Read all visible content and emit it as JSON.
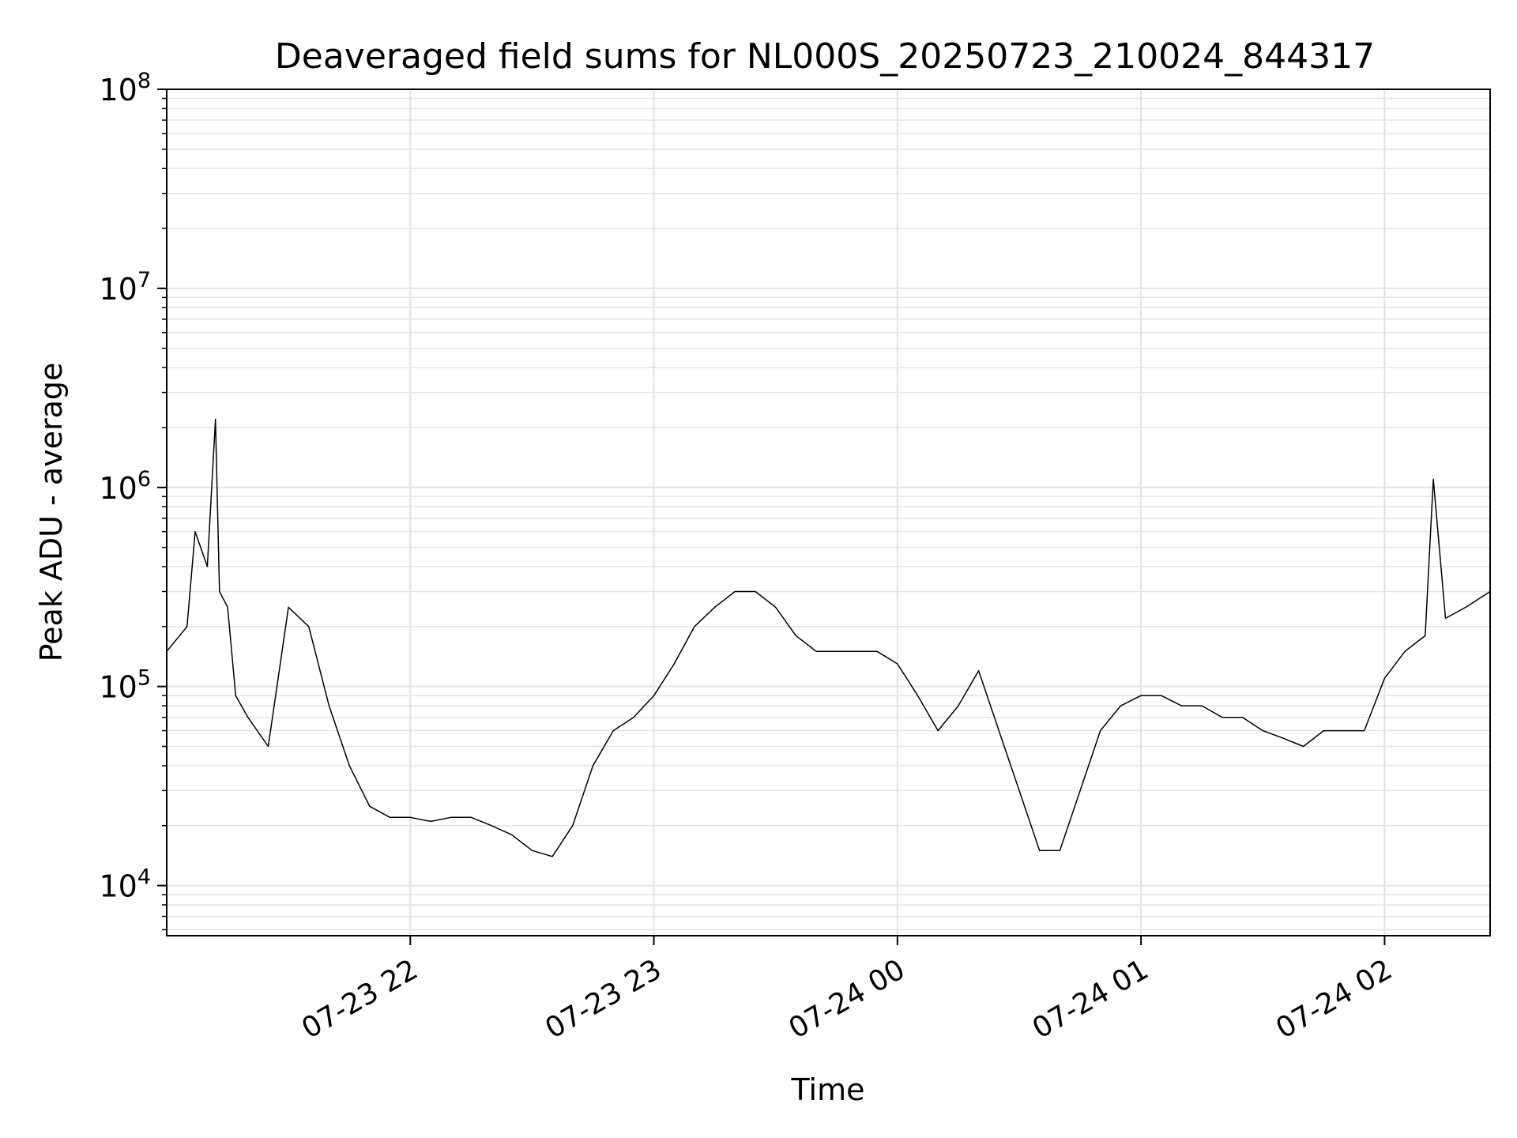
{
  "figure": {
    "title": "Deaveraged field sums for NL000S_20250723_210024_844317",
    "xlabel": "Time",
    "ylabel": "Peak ADU - average"
  },
  "chart_data": {
    "type": "line",
    "title": "Deaveraged field sums for NL000S_20250723_210024_844317",
    "xlabel": "Time",
    "ylabel": "Peak ADU - average",
    "x_range": [
      "2025-07-23 21:00",
      "2025-07-24 02:26"
    ],
    "ylim": [
      5600,
      100000000
    ],
    "yscale": "log",
    "grid": true,
    "legend": "none",
    "x_ticks": [
      {
        "time": "2025-07-23 22:00",
        "label": "07-23 22"
      },
      {
        "time": "2025-07-23 23:00",
        "label": "07-23 23"
      },
      {
        "time": "2025-07-24 00:00",
        "label": "07-24 00"
      },
      {
        "time": "2025-07-24 01:00",
        "label": "07-24 01"
      },
      {
        "time": "2025-07-24 02:00",
        "label": "07-24 02"
      }
    ],
    "y_ticks": [
      {
        "value": 10000,
        "base": "10",
        "exp": "4"
      },
      {
        "value": 100000,
        "base": "10",
        "exp": "5"
      },
      {
        "value": 1000000,
        "base": "10",
        "exp": "6"
      },
      {
        "value": 10000000,
        "base": "10",
        "exp": "7"
      },
      {
        "value": 100000000,
        "base": "10",
        "exp": "8"
      }
    ],
    "series": [
      {
        "color": "#000000",
        "x": [
          "2025-07-23 21:00",
          "2025-07-23 21:05",
          "2025-07-23 21:07",
          "2025-07-23 21:10",
          "2025-07-23 21:12",
          "2025-07-23 21:13",
          "2025-07-23 21:15",
          "2025-07-23 21:17",
          "2025-07-23 21:20",
          "2025-07-23 21:25",
          "2025-07-23 21:30",
          "2025-07-23 21:35",
          "2025-07-23 21:40",
          "2025-07-23 21:45",
          "2025-07-23 21:50",
          "2025-07-23 21:55",
          "2025-07-23 22:00",
          "2025-07-23 22:05",
          "2025-07-23 22:10",
          "2025-07-23 22:15",
          "2025-07-23 22:20",
          "2025-07-23 22:25",
          "2025-07-23 22:30",
          "2025-07-23 22:35",
          "2025-07-23 22:40",
          "2025-07-23 22:45",
          "2025-07-23 22:50",
          "2025-07-23 22:55",
          "2025-07-23 23:00",
          "2025-07-23 23:05",
          "2025-07-23 23:10",
          "2025-07-23 23:15",
          "2025-07-23 23:20",
          "2025-07-23 23:25",
          "2025-07-23 23:30",
          "2025-07-23 23:35",
          "2025-07-23 23:40",
          "2025-07-23 23:45",
          "2025-07-23 23:50",
          "2025-07-23 23:55",
          "2025-07-24 00:00",
          "2025-07-24 00:05",
          "2025-07-24 00:10",
          "2025-07-24 00:15",
          "2025-07-24 00:20",
          "2025-07-24 00:25",
          "2025-07-24 00:30",
          "2025-07-24 00:35",
          "2025-07-24 00:40",
          "2025-07-24 00:45",
          "2025-07-24 00:50",
          "2025-07-24 00:55",
          "2025-07-24 01:00",
          "2025-07-24 01:05",
          "2025-07-24 01:10",
          "2025-07-24 01:15",
          "2025-07-24 01:20",
          "2025-07-24 01:25",
          "2025-07-24 01:30",
          "2025-07-24 01:35",
          "2025-07-24 01:40",
          "2025-07-24 01:45",
          "2025-07-24 01:50",
          "2025-07-24 01:55",
          "2025-07-24 02:00",
          "2025-07-24 02:05",
          "2025-07-24 02:10",
          "2025-07-24 02:12",
          "2025-07-24 02:15",
          "2025-07-24 02:20",
          "2025-07-24 02:26"
        ],
        "y": [
          150000,
          200000,
          600000,
          400000,
          2200000,
          300000,
          250000,
          90000,
          70000,
          50000,
          250000,
          200000,
          80000,
          40000,
          25000,
          22000,
          22000,
          21000,
          22000,
          22000,
          20000,
          18000,
          15000,
          14000,
          20000,
          40000,
          60000,
          70000,
          90000,
          130000,
          200000,
          250000,
          300000,
          300000,
          250000,
          180000,
          150000,
          150000,
          150000,
          150000,
          130000,
          90000,
          60000,
          80000,
          120000,
          60000,
          30000,
          15000,
          15000,
          30000,
          60000,
          80000,
          90000,
          90000,
          80000,
          80000,
          70000,
          70000,
          60000,
          55000,
          50000,
          60000,
          60000,
          60000,
          110000,
          150000,
          180000,
          1100000,
          220000,
          250000,
          300000
        ]
      }
    ]
  }
}
